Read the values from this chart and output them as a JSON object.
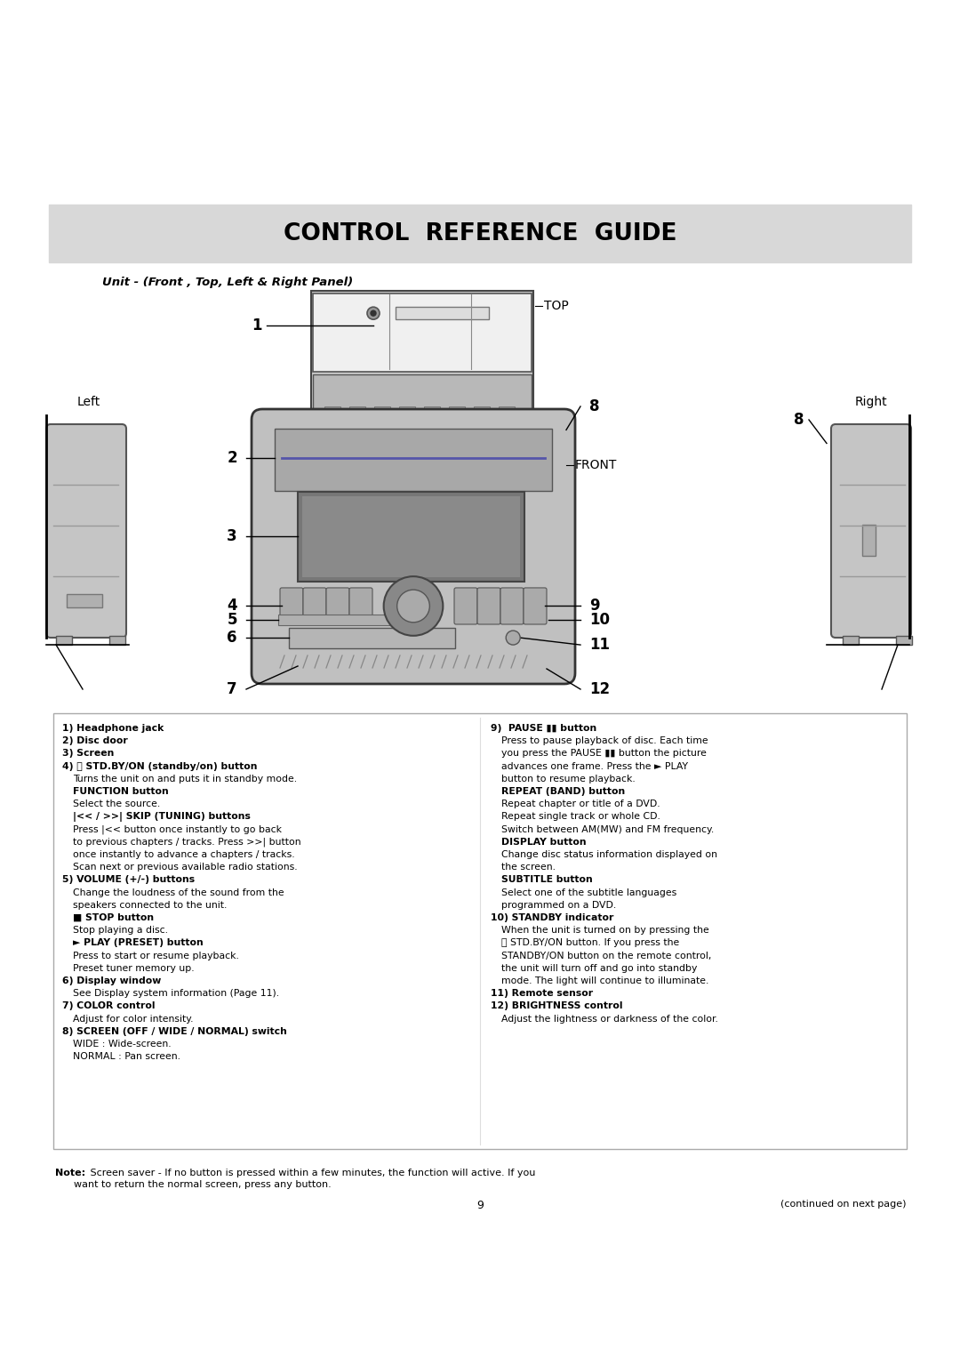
{
  "title": "CONTROL  REFERENCE  GUIDE",
  "subtitle": "Unit - (Front , Top, Left & Right Panel)",
  "bg_color": "#ffffff",
  "header_bg": "#d8d8d8",
  "text_box_bg": "#ffffff",
  "text_box_border": "#aaaaaa",
  "body_text_left": [
    {
      "bold": true,
      "indent": 0,
      "text": "1) Headphone jack"
    },
    {
      "bold": true,
      "indent": 0,
      "text": "2) Disc door"
    },
    {
      "bold": true,
      "indent": 0,
      "text": "3) Screen"
    },
    {
      "bold": true,
      "indent": 0,
      "text": "4) ⓘ STD.BY/ON (standby/on) button"
    },
    {
      "bold": false,
      "indent": 1,
      "text": "Turns the unit on and puts it in standby mode."
    },
    {
      "bold": true,
      "indent": 1,
      "text": "FUNCTION button"
    },
    {
      "bold": false,
      "indent": 1,
      "text": "Select the source."
    },
    {
      "bold": true,
      "indent": 1,
      "text": "|<< / >>| SKIP (TUNING) buttons"
    },
    {
      "bold": false,
      "indent": 1,
      "text": "Press |<< button once instantly to go back"
    },
    {
      "bold": false,
      "indent": 1,
      "text": "to previous chapters / tracks. Press >>| button"
    },
    {
      "bold": false,
      "indent": 1,
      "text": "once instantly to advance a chapters / tracks."
    },
    {
      "bold": false,
      "indent": 1,
      "text": "Scan next or previous available radio stations."
    },
    {
      "bold": true,
      "indent": 0,
      "text": "5) VOLUME (+/-) buttons"
    },
    {
      "bold": false,
      "indent": 1,
      "text": "Change the loudness of the sound from the"
    },
    {
      "bold": false,
      "indent": 1,
      "text": "speakers connected to the unit."
    },
    {
      "bold": true,
      "indent": 1,
      "text": "■ STOP button"
    },
    {
      "bold": false,
      "indent": 1,
      "text": "Stop playing a disc."
    },
    {
      "bold": true,
      "indent": 1,
      "text": "► PLAY (PRESET) button"
    },
    {
      "bold": false,
      "indent": 1,
      "text": "Press to start or resume playback."
    },
    {
      "bold": false,
      "indent": 1,
      "text": "Preset tuner memory up."
    },
    {
      "bold": true,
      "indent": 0,
      "text": "6) Display window"
    },
    {
      "bold": false,
      "indent": 1,
      "text": "See Display system information (Page 11)."
    },
    {
      "bold": true,
      "indent": 0,
      "text": "7) COLOR control"
    },
    {
      "bold": false,
      "indent": 1,
      "text": "Adjust for color intensity."
    },
    {
      "bold": true,
      "indent": 0,
      "text": "8) SCREEN (OFF / WIDE / NORMAL) switch"
    },
    {
      "bold": false,
      "indent": 1,
      "text": "WIDE : Wide-screen."
    },
    {
      "bold": false,
      "indent": 1,
      "text": "NORMAL : Pan screen."
    }
  ],
  "body_text_right": [
    {
      "bold": true,
      "indent": 0,
      "text": "9)  PAUSE ▮▮ button"
    },
    {
      "bold": false,
      "indent": 1,
      "text": "Press to pause playback of disc. Each time"
    },
    {
      "bold": false,
      "indent": 1,
      "text": "you press the PAUSE ▮▮ button the picture"
    },
    {
      "bold": false,
      "indent": 1,
      "text": "advances one frame. Press the ► PLAY"
    },
    {
      "bold": false,
      "indent": 1,
      "text": "button to resume playback."
    },
    {
      "bold": true,
      "indent": 1,
      "text": "REPEAT (BAND) button"
    },
    {
      "bold": false,
      "indent": 1,
      "text": "Repeat chapter or title of a DVD."
    },
    {
      "bold": false,
      "indent": 1,
      "text": "Repeat single track or whole CD."
    },
    {
      "bold": false,
      "indent": 1,
      "text": "Switch between AM(MW) and FM frequency."
    },
    {
      "bold": true,
      "indent": 1,
      "text": "DISPLAY button"
    },
    {
      "bold": false,
      "indent": 1,
      "text": "Change disc status information displayed on"
    },
    {
      "bold": false,
      "indent": 1,
      "text": "the screen."
    },
    {
      "bold": true,
      "indent": 1,
      "text": "SUBTITLE button"
    },
    {
      "bold": false,
      "indent": 1,
      "text": "Select one of the subtitle languages"
    },
    {
      "bold": false,
      "indent": 1,
      "text": "programmed on a DVD."
    },
    {
      "bold": true,
      "indent": 0,
      "text": "10) STANDBY indicator"
    },
    {
      "bold": false,
      "indent": 1,
      "text": "When the unit is turned on by pressing the"
    },
    {
      "bold": false,
      "indent": 1,
      "text": "ⓘ STD.BY/ON button. If you press the"
    },
    {
      "bold": false,
      "indent": 1,
      "text": "STANDBY/ON button on the remote control,"
    },
    {
      "bold": false,
      "indent": 1,
      "text": "the unit will turn off and go into standby"
    },
    {
      "bold": false,
      "indent": 1,
      "text": "mode. The light will continue to illuminate."
    },
    {
      "bold": true,
      "indent": 0,
      "text": "11) Remote sensor"
    },
    {
      "bold": true,
      "indent": 0,
      "text": "12) BRIGHTNESS control"
    },
    {
      "bold": false,
      "indent": 1,
      "text": "Adjust the lightness or darkness of the color."
    }
  ],
  "note_bold": "Note:",
  "note_text": " Screen saver - If no button is pressed within a few minutes, the function will active. If you",
  "note_text2": "      want to return the normal screen, press any button.",
  "page_num": "9",
  "continued": "(continued on next page)"
}
